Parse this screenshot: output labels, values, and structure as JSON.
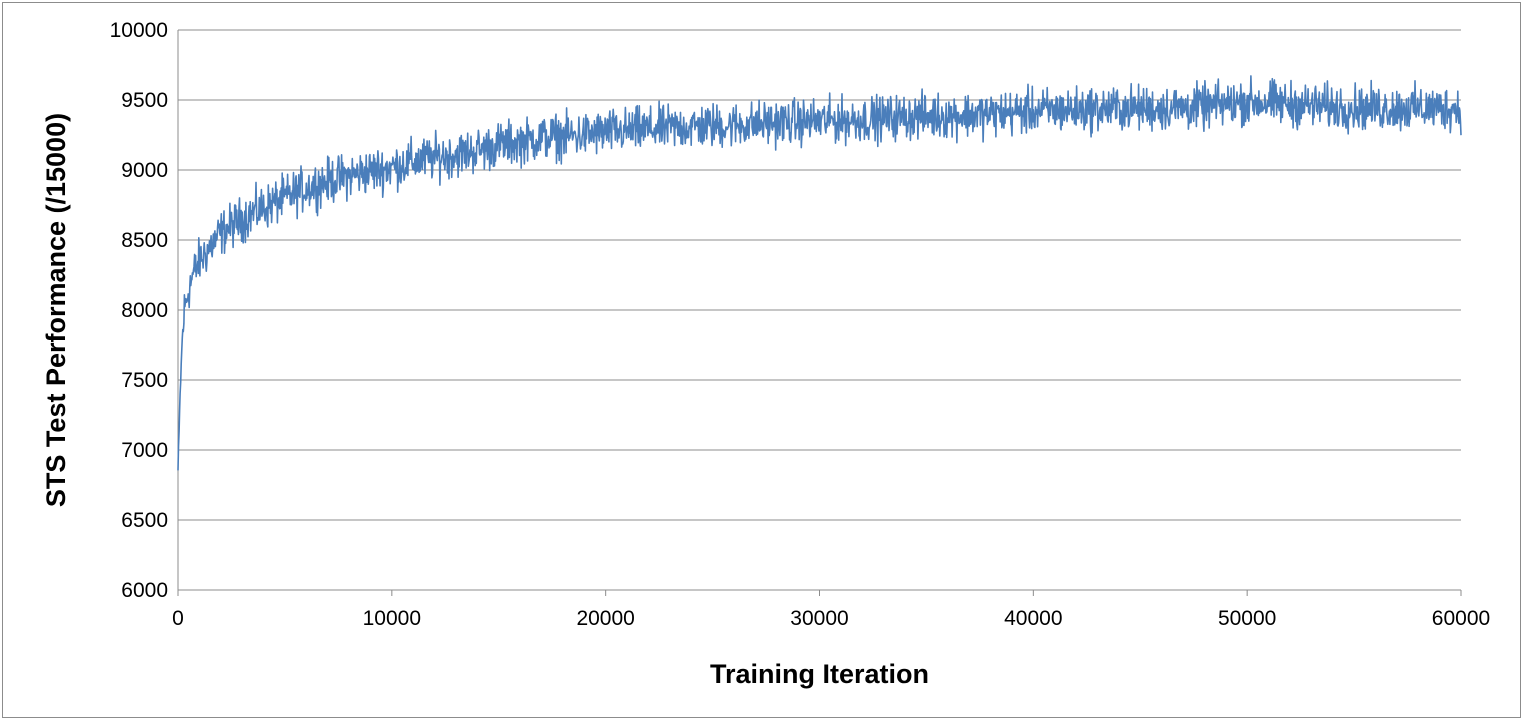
{
  "chart_data": {
    "type": "line",
    "title": "",
    "xlabel": "Training Iteration",
    "ylabel": "STS Test Performance (/15000)",
    "xlim": [
      0,
      60000
    ],
    "ylim": [
      6000,
      10000
    ],
    "x_ticks": [
      0,
      10000,
      20000,
      30000,
      40000,
      50000,
      60000
    ],
    "x_tick_labels": [
      "0",
      "10000",
      "20000",
      "30000",
      "40000",
      "50000",
      "60000"
    ],
    "y_ticks": [
      6000,
      6500,
      7000,
      7500,
      8000,
      8500,
      9000,
      9500,
      10000
    ],
    "y_tick_labels": [
      "6000",
      "6500",
      "7000",
      "7500",
      "8000",
      "8500",
      "9000",
      "9500",
      "10000"
    ],
    "grid": {
      "horizontal": true,
      "vertical": false
    },
    "legend": "none",
    "line_color": "#4a7ebb",
    "series": [
      {
        "x": [
          0,
          100,
          200,
          300,
          500,
          700,
          1000,
          1500,
          2000,
          2500,
          3000,
          4000,
          5000,
          6000,
          7000,
          8000,
          9000,
          10000,
          11000,
          12000,
          13000,
          14000,
          15000,
          16000,
          17000,
          18000,
          19000,
          20000,
          22000,
          24000,
          26000,
          28000,
          30000,
          32000,
          34000,
          36000,
          38000,
          40000,
          42000,
          44000,
          46000,
          48000,
          50000,
          52000,
          54000,
          56000,
          58000,
          60000
        ],
        "values": [
          6850,
          7400,
          7800,
          8000,
          8150,
          8250,
          8350,
          8450,
          8550,
          8600,
          8650,
          8730,
          8800,
          8870,
          8920,
          8960,
          8990,
          9020,
          9060,
          9090,
          9110,
          9140,
          9180,
          9200,
          9230,
          9240,
          9250,
          9270,
          9290,
          9310,
          9320,
          9340,
          9350,
          9360,
          9380,
          9390,
          9400,
          9420,
          9430,
          9440,
          9440,
          9450,
          9490,
          9470,
          9450,
          9440,
          9440,
          9440
        ],
        "noise_amplitude": 120
      }
    ]
  }
}
